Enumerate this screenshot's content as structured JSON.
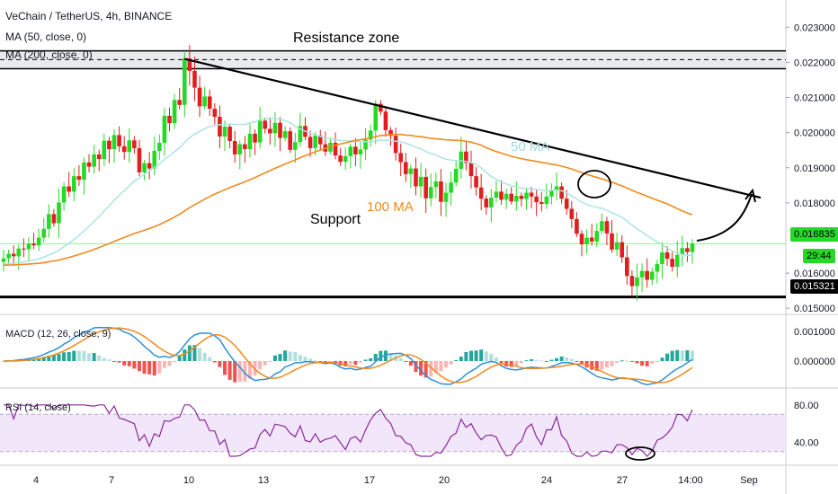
{
  "header": {
    "symbol": "VeChain / TetherUS, 4h, BINANCE",
    "ma50": "MA (50, close, 0)",
    "ma200": "MA (200, close, 0)"
  },
  "annotations": {
    "resistance": "Resistance zone",
    "support": "Support",
    "ma100": "100 MA",
    "ma50": "50 MA"
  },
  "price_tags": {
    "last": "0.016835",
    "countdown": "29:44",
    "support_level": "0.015321"
  },
  "colors": {
    "up": "#26d926",
    "down": "#e01e1e",
    "ma50": "#aee3e3",
    "ma100": "#f08a1e",
    "macd_line": "#2f8fd8",
    "signal_line": "#f08a1e",
    "rsi_line": "#8a2a9a",
    "rsi_band": "#f2e6fa"
  },
  "panes": {
    "macd_label": "MACD (12, 26, close, 9)",
    "rsi_label": "RSI (14, close)"
  },
  "chart_data": [
    {
      "type": "candlestick",
      "ylim": [
        0.0148,
        0.0237
      ],
      "yticks": [
        "0.023000",
        "0.022000",
        "0.021000",
        "0.020000",
        "0.019000",
        "0.018000",
        "0.016835",
        "0.016000",
        "0.015321",
        "0.015000"
      ],
      "xticks": [
        "4",
        "7",
        "10",
        "13",
        "17",
        "20",
        "24",
        "27",
        "14:00",
        "Sep"
      ],
      "levels": {
        "resistance_top": 0.02233,
        "resistance_mid": 0.02208,
        "resistance_bottom": 0.02182,
        "support": 0.01532
      },
      "trendline": [
        [
          0.0221,
          0.01815
        ]
      ],
      "closes": [
        0.01642,
        0.01655,
        0.01648,
        0.0167,
        0.01668,
        0.01684,
        0.01679,
        0.01701,
        0.01726,
        0.01768,
        0.01742,
        0.01801,
        0.01847,
        0.01832,
        0.01876,
        0.01866,
        0.01915,
        0.01903,
        0.01938,
        0.01925,
        0.01977,
        0.01953,
        0.01993,
        0.01961,
        0.01945,
        0.01978,
        0.01956,
        0.01887,
        0.01913,
        0.01898,
        0.01948,
        0.01971,
        0.02048,
        0.02027,
        0.02093,
        0.02079,
        0.02211,
        0.02176,
        0.02128,
        0.02075,
        0.02103,
        0.02068,
        0.02045,
        0.01989,
        0.02017,
        0.01976,
        0.01938,
        0.01967,
        0.01953,
        0.01997,
        0.01972,
        0.02034,
        0.02011,
        0.01998,
        0.02028,
        0.01985,
        0.02004,
        0.01951,
        0.01973,
        0.02019,
        0.01988,
        0.01956,
        0.01992,
        0.01967,
        0.01946,
        0.01971,
        0.01935,
        0.01917,
        0.01933,
        0.0196,
        0.01938,
        0.01952,
        0.0198,
        0.02006,
        0.02082,
        0.0206,
        0.02007,
        0.01991,
        0.01942,
        0.01916,
        0.01882,
        0.01898,
        0.01847,
        0.01874,
        0.01813,
        0.01845,
        0.01861,
        0.01803,
        0.01829,
        0.01858,
        0.01897,
        0.01946,
        0.01914,
        0.01876,
        0.01844,
        0.01812,
        0.01787,
        0.01815,
        0.01832,
        0.01809,
        0.01826,
        0.01804,
        0.0182,
        0.01811,
        0.01829,
        0.01818,
        0.01802,
        0.01797,
        0.01818,
        0.01835,
        0.01847,
        0.01812,
        0.01783,
        0.01754,
        0.01712,
        0.01682,
        0.01701,
        0.0169,
        0.0172,
        0.01748,
        0.01713,
        0.01667,
        0.01688,
        0.01645,
        0.01592,
        0.01563,
        0.01588,
        0.01606,
        0.01581,
        0.01604,
        0.01626,
        0.01659,
        0.01641,
        0.01618,
        0.01652,
        0.01671,
        0.0166,
        0.01684
      ],
      "ma50_start": 0.01625,
      "ma100_start": 0.01622
    },
    {
      "type": "bar",
      "name": "MACD (12, 26, close, 9)",
      "yticks": [
        "0.001000",
        "0.000000"
      ]
    },
    {
      "type": "line",
      "name": "RSI (14, close)",
      "yticks": [
        "80.00",
        "40.00"
      ],
      "band": [
        30,
        70
      ]
    }
  ]
}
